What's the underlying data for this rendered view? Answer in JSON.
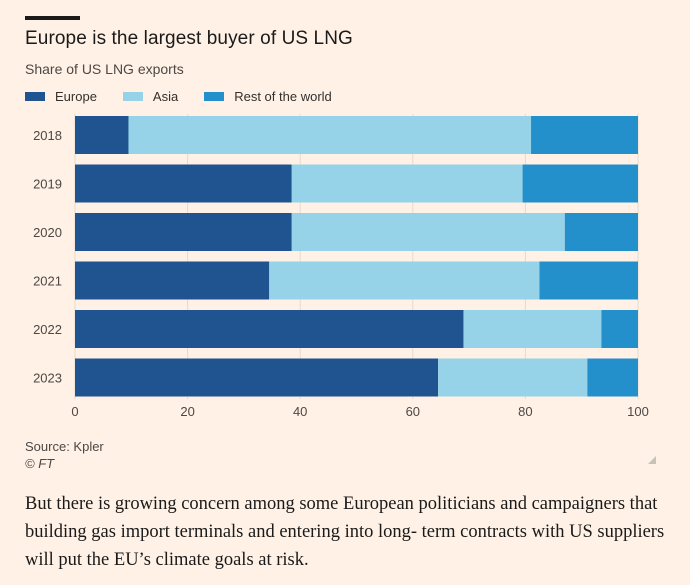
{
  "header": {
    "title": "Europe is the largest buyer of US LNG",
    "subtitle": "Share of US LNG exports"
  },
  "legend": [
    {
      "label": "Europe",
      "color": "#1f5490"
    },
    {
      "label": "Asia",
      "color": "#96d2e8"
    },
    {
      "label": "Rest of the world",
      "color": "#2390cc"
    }
  ],
  "chart_data": {
    "type": "bar",
    "orientation": "horizontal",
    "stacked": true,
    "title": "Europe is the largest buyer of US LNG",
    "subtitle": "Share of US LNG exports",
    "categories": [
      "2018",
      "2019",
      "2020",
      "2021",
      "2022",
      "2023"
    ],
    "series": [
      {
        "name": "Europe",
        "color": "#1f5490",
        "values": [
          9.5,
          38.5,
          38.5,
          34.5,
          69,
          64.5
        ]
      },
      {
        "name": "Asia",
        "color": "#96d2e8",
        "values": [
          71.5,
          41,
          48.5,
          48,
          24.5,
          26.5
        ]
      },
      {
        "name": "Rest of the world",
        "color": "#2390cc",
        "values": [
          19,
          20.5,
          13,
          17.5,
          6.5,
          9
        ]
      }
    ],
    "xlim": [
      0,
      100
    ],
    "xticks": [
      "0",
      "20",
      "40",
      "60",
      "80",
      "100"
    ],
    "xlabel": "",
    "ylabel": "",
    "grid": "vertical"
  },
  "footer": {
    "source": "Source: Kpler",
    "credit": "© FT"
  },
  "article": {
    "paragraph": "But there is growing concern among some European politicians and campaigners that building gas import terminals and entering into long- term contracts with US suppliers will put the EU’s climate goals at risk."
  }
}
